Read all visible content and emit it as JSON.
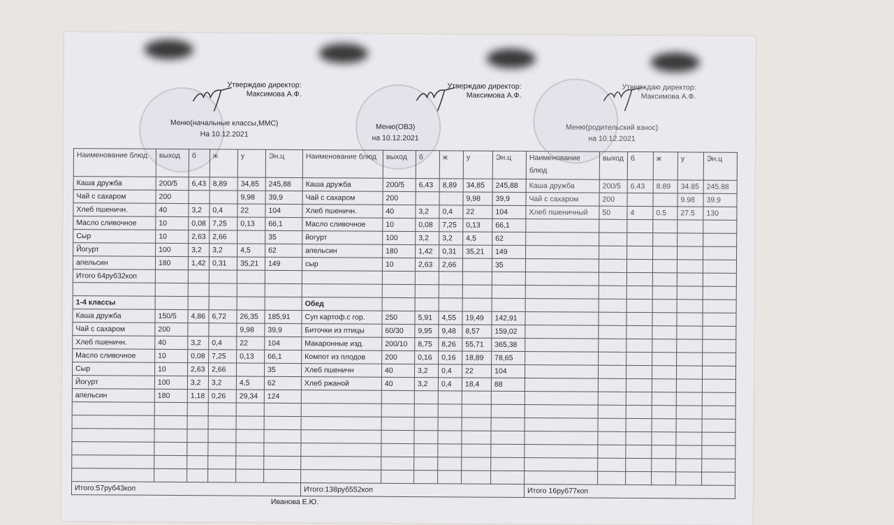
{
  "approval": {
    "line1": "Утверждаю   директор:",
    "line2": "Максимова А.Ф."
  },
  "panels": [
    {
      "title": "Меню(начальные классы,ММС)",
      "date": "На  10.12.2021",
      "headers": [
        "Наименование блюд",
        "выход",
        "б",
        "ж",
        "у",
        "Эн.ц"
      ],
      "rows": [
        [
          "Каша дружба",
          "200/5",
          "6,43",
          "8,89",
          "34,85",
          "245,88"
        ],
        [
          "Чай с сахаром",
          "200",
          "",
          "",
          "9,98",
          "39,9"
        ],
        [
          "Хлеб пшеничн.",
          "40",
          "3,2",
          "0,4",
          "22",
          "104"
        ],
        [
          "Масло сливочное",
          "10",
          "0,08",
          "7,25",
          "0,13",
          "66,1"
        ],
        [
          "Сыр",
          "10",
          "2,63",
          "2,66",
          "",
          "35"
        ],
        [
          "Йогурт",
          "100",
          "3,2",
          "3,2",
          "4,5",
          "62"
        ],
        [
          "апельсин",
          "180",
          "1,42",
          "0,31",
          "35,21",
          "149"
        ],
        [
          "Итого 64руб32коп",
          "",
          "",
          "",
          "",
          ""
        ],
        [
          "",
          "",
          "",
          "",
          "",
          ""
        ],
        [
          "1-4 классы",
          "",
          "",
          "",
          "",
          ""
        ],
        [
          "Каша дружба",
          "150/5",
          "4,86",
          "6,72",
          "26,35",
          "185,91"
        ],
        [
          "Чай с сахаром",
          "200",
          "",
          "",
          "9,98",
          "39,9"
        ],
        [
          "Хлеб пшеничн.",
          "40",
          "3,2",
          "0,4",
          "22",
          "104"
        ],
        [
          "Масло сливочное",
          "10",
          "0,08",
          "7,25",
          "0,13",
          "66,1"
        ],
        [
          "Сыр",
          "10",
          "2,63",
          "2,66",
          "",
          "35"
        ],
        [
          "Йогурт",
          "100",
          "3,2",
          "3,2",
          "4,5",
          "62"
        ],
        [
          "апельсин",
          "180",
          "1,18",
          "0,26",
          "29,34",
          "124"
        ]
      ],
      "total": "Итого:57руб43коп"
    },
    {
      "title": "Меню(ОВЗ)",
      "date": "на  10.12.2021",
      "headers": [
        "Наименование блюд",
        "выход",
        "б",
        "ж",
        "у",
        "Эн.ц"
      ],
      "rows": [
        [
          "Каша дружба",
          "200/5",
          "6,43",
          "8,89",
          "34,85",
          "245,88"
        ],
        [
          "Чай с сахаром",
          "200",
          "",
          "",
          "9,98",
          "39,9"
        ],
        [
          "Хлеб пшеничн.",
          "40",
          "3,2",
          "0,4",
          "22",
          "104"
        ],
        [
          "Масло сливочное",
          "10",
          "0,08",
          "7,25",
          "0,13",
          "66,1"
        ],
        [
          "йогурт",
          "100",
          "3,2",
          "3,2",
          "4,5",
          "62"
        ],
        [
          "апельсин",
          "180",
          "1,42",
          "0,31",
          "35,21",
          "149"
        ],
        [
          "сыр",
          "10",
          "2,63",
          "2,66",
          "",
          "35"
        ],
        [
          "",
          "",
          "",
          "",
          "",
          ""
        ],
        [
          "",
          "",
          "",
          "",
          "",
          ""
        ],
        [
          "Обед",
          "",
          "",
          "",
          "",
          ""
        ],
        [
          "Суп картоф.с гор.",
          "250",
          "5,91",
          "4,55",
          "19,49",
          "142,91"
        ],
        [
          "Биточки из птицы",
          "60/30",
          "9,95",
          "9,48",
          "8,57",
          "159,02"
        ],
        [
          "Макаронные изд.",
          "200/10",
          "8,75",
          "8,26",
          "55,71",
          "365,38"
        ],
        [
          "Компот из плодов",
          "200",
          "0,16",
          "0,16",
          "18,89",
          "78,65"
        ],
        [
          "Хлеб пшеничн",
          "40",
          "3,2",
          "0,4",
          "22",
          "104"
        ],
        [
          "Хлеб ржаной",
          "40",
          "3,2",
          "0,4",
          "18,4",
          "88"
        ]
      ],
      "total": "Итого:138руб552коп"
    },
    {
      "title": "Меню(родительский взнос)",
      "date": "на  10.12.2021",
      "headers": [
        "Наименование блюд",
        "выход",
        "б",
        "ж",
        "у",
        "Эн.ц"
      ],
      "rows": [
        [
          "Каша дружба",
          "200/5",
          "6.43",
          "8.89",
          "34.85",
          "245.88"
        ],
        [
          "Чай с сахаром",
          "200",
          "",
          "",
          "9.98",
          "39.9"
        ],
        [
          "Хлеб пшеничный",
          "50",
          "4",
          "0.5",
          "27.5",
          "130"
        ]
      ],
      "total": "Итого 16руб77коп"
    }
  ],
  "signature_name": "Иванова Е.Ю."
}
